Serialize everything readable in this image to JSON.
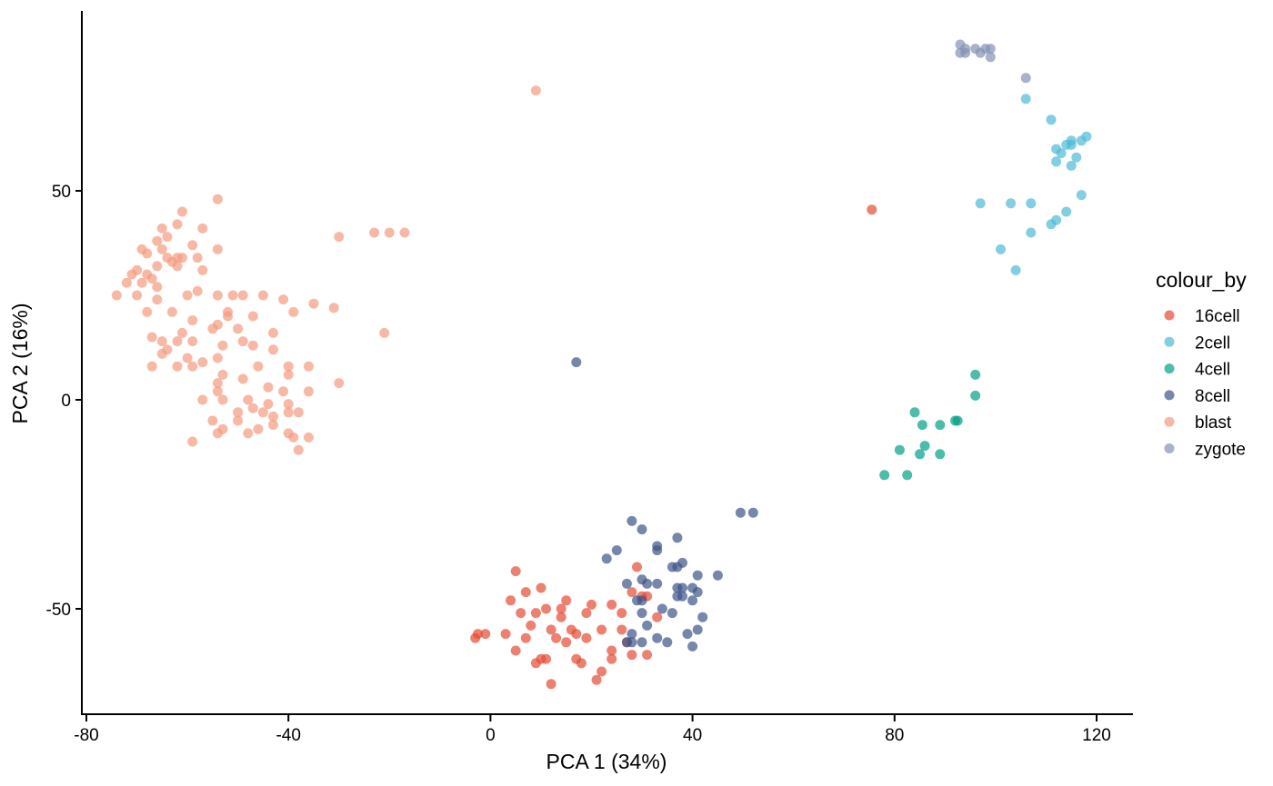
{
  "chart_data": {
    "type": "scatter",
    "xlabel": "PCA 1 (34%)",
    "ylabel": "PCA 2 (16%)",
    "xlim": [
      -81,
      127
    ],
    "ylim": [
      -75,
      93
    ],
    "xticks": [
      -80,
      -40,
      0,
      40,
      80,
      120
    ],
    "yticks": [
      -50,
      0,
      50
    ],
    "grid": false,
    "legend": {
      "title": "colour_by",
      "position": "right"
    },
    "series": [
      {
        "name": "16cell",
        "color": "#E64B35",
        "points": [
          [
            75.5,
            45.5
          ],
          [
            5,
            -41
          ],
          [
            10,
            -45
          ],
          [
            7,
            -46
          ],
          [
            4,
            -48
          ],
          [
            20,
            -49
          ],
          [
            15,
            -48
          ],
          [
            29,
            -40
          ],
          [
            28,
            -46
          ],
          [
            24,
            -49
          ],
          [
            19,
            -51
          ],
          [
            26,
            -51
          ],
          [
            31,
            -47
          ],
          [
            9,
            -51
          ],
          [
            11,
            -50
          ],
          [
            14,
            -52
          ],
          [
            6,
            -51
          ],
          [
            12,
            -55
          ],
          [
            16,
            -55
          ],
          [
            8,
            -54
          ],
          [
            13,
            -57
          ],
          [
            17,
            -56
          ],
          [
            19,
            -57
          ],
          [
            22,
            -55
          ],
          [
            3,
            -56
          ],
          [
            -1,
            -56
          ],
          [
            -3,
            -57
          ],
          [
            -2.5,
            -56
          ],
          [
            7,
            -57
          ],
          [
            5,
            -60
          ],
          [
            15,
            -58
          ],
          [
            27,
            -58
          ],
          [
            24,
            -60
          ],
          [
            28,
            -61
          ],
          [
            31,
            -61
          ],
          [
            17,
            -62
          ],
          [
            18,
            -63
          ],
          [
            9,
            -63
          ],
          [
            10,
            -62
          ],
          [
            11,
            -62
          ],
          [
            12,
            -68
          ],
          [
            21,
            -67
          ],
          [
            22,
            -65
          ],
          [
            24,
            -62
          ],
          [
            33,
            -52
          ],
          [
            30,
            -47
          ],
          [
            14,
            -50
          ],
          [
            26,
            -55
          ]
        ]
      },
      {
        "name": "2cell",
        "color": "#4DBBD5",
        "points": [
          [
            106,
            72
          ],
          [
            111,
            67
          ],
          [
            112,
            60
          ],
          [
            113,
            59
          ],
          [
            114,
            61
          ],
          [
            112,
            57
          ],
          [
            115,
            62
          ],
          [
            117,
            62
          ],
          [
            116,
            58
          ],
          [
            118,
            63
          ],
          [
            115,
            56
          ],
          [
            115,
            61
          ],
          [
            97,
            47
          ],
          [
            103,
            47
          ],
          [
            107,
            47
          ],
          [
            114,
            45
          ],
          [
            117,
            49
          ],
          [
            111,
            42
          ],
          [
            112,
            43
          ],
          [
            107,
            40
          ],
          [
            101,
            36
          ],
          [
            104,
            31
          ]
        ]
      },
      {
        "name": "4cell",
        "color": "#00A087",
        "points": [
          [
            96,
            6
          ],
          [
            96,
            1
          ],
          [
            84,
            -3
          ],
          [
            92,
            -5
          ],
          [
            92.5,
            -5
          ],
          [
            85.5,
            -6
          ],
          [
            89,
            -6
          ],
          [
            86,
            -11
          ],
          [
            81,
            -12
          ],
          [
            89,
            -13
          ],
          [
            85,
            -13
          ],
          [
            78,
            -18
          ],
          [
            82.5,
            -18
          ]
        ]
      },
      {
        "name": "8cell",
        "color": "#3C5488",
        "points": [
          [
            17,
            9
          ],
          [
            49.5,
            -27
          ],
          [
            52,
            -27
          ],
          [
            28,
            -29
          ],
          [
            30,
            -31
          ],
          [
            37,
            -33
          ],
          [
            33,
            -35
          ],
          [
            25,
            -36
          ],
          [
            33,
            -36
          ],
          [
            23,
            -38
          ],
          [
            38,
            -39
          ],
          [
            36,
            -40
          ],
          [
            37,
            -40
          ],
          [
            41,
            -42
          ],
          [
            45,
            -42
          ],
          [
            30,
            -43
          ],
          [
            31,
            -44
          ],
          [
            33,
            -44
          ],
          [
            27,
            -44
          ],
          [
            37,
            -45
          ],
          [
            40,
            -45
          ],
          [
            38,
            -45
          ],
          [
            41,
            -46
          ],
          [
            37,
            -47
          ],
          [
            38,
            -47
          ],
          [
            40,
            -48
          ],
          [
            30,
            -48
          ],
          [
            29,
            -48
          ],
          [
            34,
            -50
          ],
          [
            30,
            -51
          ],
          [
            36,
            -51
          ],
          [
            42,
            -52
          ],
          [
            31,
            -54
          ],
          [
            41,
            -55
          ],
          [
            28,
            -56
          ],
          [
            33,
            -57
          ],
          [
            39,
            -56
          ],
          [
            35,
            -58
          ],
          [
            30,
            -58
          ],
          [
            28,
            -58
          ],
          [
            27,
            -58
          ],
          [
            40,
            -59
          ]
        ]
      },
      {
        "name": "blast",
        "color": "#F39B7F",
        "points": [
          [
            9,
            74
          ],
          [
            -54,
            48
          ],
          [
            -61,
            45
          ],
          [
            -62,
            42
          ],
          [
            -65,
            41
          ],
          [
            -57,
            41
          ],
          [
            -20,
            40
          ],
          [
            -23,
            40
          ],
          [
            -30,
            39
          ],
          [
            -64,
            39
          ],
          [
            -66,
            38
          ],
          [
            -59,
            37
          ],
          [
            -69,
            36
          ],
          [
            -65,
            36
          ],
          [
            -54,
            36
          ],
          [
            -68,
            35
          ],
          [
            -62,
            34
          ],
          [
            -58,
            34
          ],
          [
            -64,
            34
          ],
          [
            -61,
            34
          ],
          [
            -63,
            33
          ],
          [
            -66,
            32
          ],
          [
            -62,
            32
          ],
          [
            -57,
            31
          ],
          [
            -70,
            31
          ],
          [
            -68,
            30
          ],
          [
            -71,
            30
          ],
          [
            -67,
            29
          ],
          [
            -72,
            28
          ],
          [
            -69,
            28
          ],
          [
            -66,
            27
          ],
          [
            -74,
            25
          ],
          [
            -70,
            25
          ],
          [
            -66,
            24
          ],
          [
            -60,
            25
          ],
          [
            -54,
            25
          ],
          [
            -51,
            25
          ],
          [
            -49,
            25
          ],
          [
            -41,
            24
          ],
          [
            -35,
            23
          ],
          [
            -31,
            22
          ],
          [
            -68,
            21
          ],
          [
            -63,
            21
          ],
          [
            -52,
            20
          ],
          [
            -47,
            20
          ],
          [
            -59,
            19
          ],
          [
            -54,
            18
          ],
          [
            -50,
            17
          ],
          [
            -61,
            16
          ],
          [
            -43,
            16
          ],
          [
            -21,
            16
          ],
          [
            -67,
            15
          ],
          [
            -65,
            14
          ],
          [
            -62,
            14
          ],
          [
            -59,
            14
          ],
          [
            -53,
            13
          ],
          [
            -47,
            13
          ],
          [
            -43,
            12
          ],
          [
            -65,
            11
          ],
          [
            -60,
            10
          ],
          [
            -57,
            9
          ],
          [
            -54,
            10
          ],
          [
            -46,
            8
          ],
          [
            -40,
            8
          ],
          [
            -36,
            8
          ],
          [
            -62,
            8
          ],
          [
            -59,
            8
          ],
          [
            -67,
            8
          ],
          [
            -53,
            6
          ],
          [
            -49,
            5
          ],
          [
            -40,
            6
          ],
          [
            -30,
            4
          ],
          [
            -54,
            4
          ],
          [
            -44,
            3
          ],
          [
            -41,
            2
          ],
          [
            -36,
            2
          ],
          [
            -54,
            2
          ],
          [
            -57,
            0
          ],
          [
            -53,
            0
          ],
          [
            -48,
            0
          ],
          [
            -44,
            -1
          ],
          [
            -40,
            -1
          ],
          [
            -47,
            -2
          ],
          [
            -45,
            -3
          ],
          [
            -50,
            -3
          ],
          [
            -43,
            -4
          ],
          [
            -40,
            -3
          ],
          [
            -38,
            -3
          ],
          [
            -55,
            -5
          ],
          [
            -50,
            -5
          ],
          [
            -43,
            -6
          ],
          [
            -46,
            -7
          ],
          [
            -53,
            -7
          ],
          [
            -54,
            -8
          ],
          [
            -48,
            -8
          ],
          [
            -40,
            -8
          ],
          [
            -39,
            -9
          ],
          [
            -36,
            -9
          ],
          [
            -59,
            -10
          ],
          [
            -38,
            -12
          ],
          [
            -17,
            40
          ],
          [
            -49,
            14
          ],
          [
            -58,
            26
          ],
          [
            -45,
            25
          ],
          [
            -39,
            21
          ],
          [
            -55,
            17
          ],
          [
            -64,
            12
          ],
          [
            -52,
            21
          ]
        ]
      },
      {
        "name": "zygote",
        "color": "#8491B4",
        "points": [
          [
            93,
            85
          ],
          [
            94,
            84
          ],
          [
            96,
            84
          ],
          [
            98,
            84
          ],
          [
            99,
            84
          ],
          [
            93,
            83
          ],
          [
            94,
            83
          ],
          [
            97,
            83
          ],
          [
            99,
            82
          ],
          [
            106,
            77
          ]
        ]
      }
    ]
  }
}
